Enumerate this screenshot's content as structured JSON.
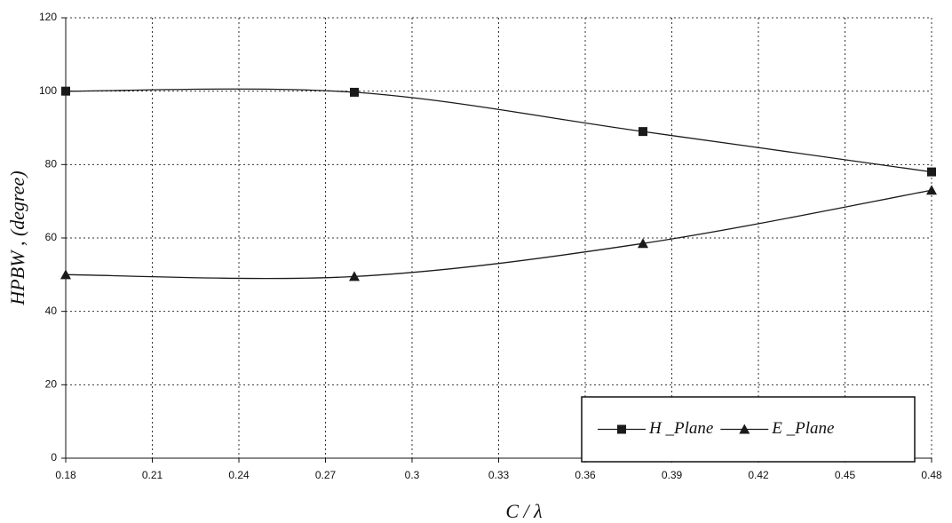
{
  "chart_data": {
    "type": "line",
    "x_label": "C / λ",
    "y_label": "HPBW , (degree)",
    "x": [
      0.18,
      0.28,
      0.38,
      0.48
    ],
    "series": [
      {
        "name": "H _Plane",
        "color": "#1a1a1a",
        "marker": "square",
        "values": [
          100,
          99.7,
          89,
          78
        ]
      },
      {
        "name": "E _Plane",
        "color": "#1a1a1a",
        "marker": "triangle",
        "values": [
          50,
          49.5,
          58.5,
          73
        ]
      }
    ],
    "xlim": [
      0.18,
      0.48
    ],
    "xticks": [
      0.18,
      0.21,
      0.24,
      0.27,
      0.3,
      0.33,
      0.36,
      0.39,
      0.42,
      0.45,
      0.48
    ],
    "ylim": [
      0,
      120
    ],
    "yticks": [
      0,
      20,
      40,
      60,
      80,
      100,
      120
    ],
    "grid": true,
    "smooth": true,
    "legend": "lower-right"
  }
}
